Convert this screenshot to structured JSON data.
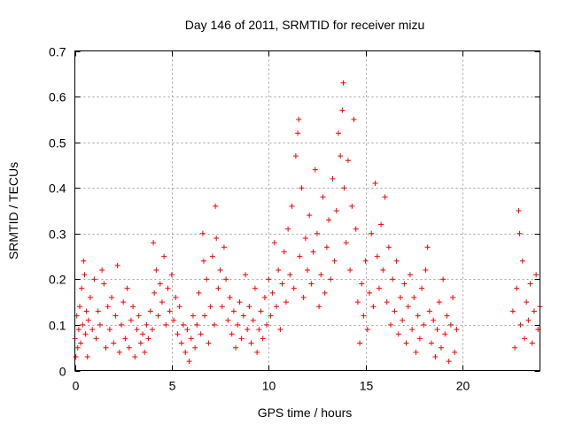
{
  "chart_data": {
    "type": "scatter",
    "title": "Day 146 of 2011, SRMTID for receiver mizu",
    "xlabel": "GPS time / hours",
    "ylabel": "SRMTID / TECUs",
    "xlim": [
      0,
      24
    ],
    "ylim": [
      0,
      0.7
    ],
    "xticks": [
      0,
      5,
      10,
      15,
      20
    ],
    "yticks": [
      0,
      0.1,
      0.2,
      0.3,
      0.4,
      0.5,
      0.6,
      0.7
    ],
    "xtick_labels": [
      "0",
      "5",
      "10",
      "15",
      "20"
    ],
    "ytick_labels": [
      "0",
      "0.1",
      "0.2",
      "0.3",
      "0.4",
      "0.5",
      "0.6",
      "0.7"
    ],
    "grid": true,
    "marker": "+",
    "series": [
      {
        "name": "SRMTID",
        "color": "#ff0000",
        "points": [
          [
            0.0,
            0.07
          ],
          [
            0.05,
            0.03
          ],
          [
            0.1,
            0.12
          ],
          [
            0.15,
            0.05
          ],
          [
            0.2,
            0.09
          ],
          [
            0.25,
            0.14
          ],
          [
            0.3,
            0.06
          ],
          [
            0.35,
            0.18
          ],
          [
            0.4,
            0.1
          ],
          [
            0.45,
            0.24
          ],
          [
            0.5,
            0.21
          ],
          [
            0.55,
            0.08
          ],
          [
            0.6,
            0.13
          ],
          [
            0.65,
            0.03
          ],
          [
            0.7,
            0.11
          ],
          [
            0.8,
            0.16
          ],
          [
            0.9,
            0.09
          ],
          [
            1.0,
            0.2
          ],
          [
            1.1,
            0.07
          ],
          [
            1.2,
            0.13
          ],
          [
            1.3,
            0.1
          ],
          [
            1.4,
            0.22
          ],
          [
            1.5,
            0.19
          ],
          [
            1.6,
            0.05
          ],
          [
            1.7,
            0.14
          ],
          [
            1.8,
            0.09
          ],
          [
            1.9,
            0.16
          ],
          [
            2.0,
            0.06
          ],
          [
            2.1,
            0.12
          ],
          [
            2.2,
            0.23
          ],
          [
            2.3,
            0.04
          ],
          [
            2.4,
            0.1
          ],
          [
            2.5,
            0.15
          ],
          [
            2.6,
            0.07
          ],
          [
            2.7,
            0.18
          ],
          [
            2.8,
            0.05
          ],
          [
            2.9,
            0.11
          ],
          [
            3.0,
            0.14
          ],
          [
            3.1,
            0.03
          ],
          [
            3.2,
            0.09
          ],
          [
            3.3,
            0.12
          ],
          [
            3.4,
            0.06
          ],
          [
            3.5,
            0.08
          ],
          [
            3.6,
            0.04
          ],
          [
            3.7,
            0.1
          ],
          [
            3.8,
            0.07
          ],
          [
            3.9,
            0.13
          ],
          [
            4.0,
            0.09
          ],
          [
            4.05,
            0.28
          ],
          [
            4.1,
            0.17
          ],
          [
            4.2,
            0.22
          ],
          [
            4.3,
            0.12
          ],
          [
            4.4,
            0.19
          ],
          [
            4.5,
            0.15
          ],
          [
            4.6,
            0.25
          ],
          [
            4.7,
            0.1
          ],
          [
            4.8,
            0.18
          ],
          [
            4.9,
            0.13
          ],
          [
            5.0,
            0.21
          ],
          [
            5.1,
            0.11
          ],
          [
            5.2,
            0.16
          ],
          [
            5.3,
            0.08
          ],
          [
            5.4,
            0.14
          ],
          [
            5.5,
            0.06
          ],
          [
            5.6,
            0.1
          ],
          [
            5.7,
            0.04
          ],
          [
            5.8,
            0.09
          ],
          [
            5.9,
            0.02
          ],
          [
            6.0,
            0.07
          ],
          [
            6.1,
            0.12
          ],
          [
            6.2,
            0.05
          ],
          [
            6.3,
            0.1
          ],
          [
            6.4,
            0.17
          ],
          [
            6.5,
            0.08
          ],
          [
            6.6,
            0.3
          ],
          [
            6.65,
            0.24
          ],
          [
            6.7,
            0.12
          ],
          [
            6.8,
            0.2
          ],
          [
            6.9,
            0.06
          ],
          [
            7.0,
            0.14
          ],
          [
            7.1,
            0.25
          ],
          [
            7.2,
            0.1
          ],
          [
            7.25,
            0.36
          ],
          [
            7.3,
            0.29
          ],
          [
            7.4,
            0.18
          ],
          [
            7.5,
            0.22
          ],
          [
            7.6,
            0.14
          ],
          [
            7.7,
            0.27
          ],
          [
            7.8,
            0.2
          ],
          [
            7.9,
            0.11
          ],
          [
            8.0,
            0.16
          ],
          [
            8.1,
            0.08
          ],
          [
            8.2,
            0.13
          ],
          [
            8.3,
            0.05
          ],
          [
            8.4,
            0.1
          ],
          [
            8.5,
            0.15
          ],
          [
            8.6,
            0.07
          ],
          [
            8.7,
            0.12
          ],
          [
            8.8,
            0.21
          ],
          [
            8.9,
            0.09
          ],
          [
            9.0,
            0.14
          ],
          [
            9.1,
            0.06
          ],
          [
            9.2,
            0.11
          ],
          [
            9.3,
            0.18
          ],
          [
            9.4,
            0.04
          ],
          [
            9.5,
            0.09
          ],
          [
            9.6,
            0.13
          ],
          [
            9.7,
            0.07
          ],
          [
            9.8,
            0.16
          ],
          [
            9.9,
            0.1
          ],
          [
            10.0,
            0.2
          ],
          [
            10.1,
            0.12
          ],
          [
            10.2,
            0.17
          ],
          [
            10.3,
            0.28
          ],
          [
            10.4,
            0.14
          ],
          [
            10.5,
            0.22
          ],
          [
            10.6,
            0.09
          ],
          [
            10.7,
            0.19
          ],
          [
            10.8,
            0.26
          ],
          [
            10.9,
            0.15
          ],
          [
            11.0,
            0.31
          ],
          [
            11.1,
            0.21
          ],
          [
            11.2,
            0.36
          ],
          [
            11.3,
            0.18
          ],
          [
            11.4,
            0.47
          ],
          [
            11.5,
            0.52
          ],
          [
            11.55,
            0.55
          ],
          [
            11.6,
            0.25
          ],
          [
            11.7,
            0.4
          ],
          [
            11.8,
            0.16
          ],
          [
            11.9,
            0.29
          ],
          [
            12.0,
            0.22
          ],
          [
            12.1,
            0.34
          ],
          [
            12.2,
            0.19
          ],
          [
            12.3,
            0.26
          ],
          [
            12.4,
            0.44
          ],
          [
            12.5,
            0.3
          ],
          [
            12.6,
            0.14
          ],
          [
            12.7,
            0.21
          ],
          [
            12.8,
            0.38
          ],
          [
            12.9,
            0.17
          ],
          [
            13.0,
            0.27
          ],
          [
            13.1,
            0.33
          ],
          [
            13.2,
            0.2
          ],
          [
            13.3,
            0.42
          ],
          [
            13.4,
            0.24
          ],
          [
            13.5,
            0.35
          ],
          [
            13.6,
            0.52
          ],
          [
            13.7,
            0.47
          ],
          [
            13.8,
            0.57
          ],
          [
            13.85,
            0.63
          ],
          [
            13.9,
            0.4
          ],
          [
            14.0,
            0.28
          ],
          [
            14.1,
            0.46
          ],
          [
            14.2,
            0.22
          ],
          [
            14.3,
            0.36
          ],
          [
            14.4,
            0.55
          ],
          [
            14.5,
            0.31
          ],
          [
            14.6,
            0.15
          ],
          [
            14.7,
            0.06
          ],
          [
            14.8,
            0.19
          ],
          [
            14.9,
            0.12
          ],
          [
            15.0,
            0.24
          ],
          [
            15.1,
            0.09
          ],
          [
            15.2,
            0.17
          ],
          [
            15.3,
            0.3
          ],
          [
            15.4,
            0.14
          ],
          [
            15.5,
            0.41
          ],
          [
            15.6,
            0.25
          ],
          [
            15.7,
            0.18
          ],
          [
            15.8,
            0.32
          ],
          [
            15.9,
            0.22
          ],
          [
            16.0,
            0.38
          ],
          [
            16.1,
            0.15
          ],
          [
            16.2,
            0.27
          ],
          [
            16.3,
            0.1
          ],
          [
            16.4,
            0.2
          ],
          [
            16.5,
            0.13
          ],
          [
            16.6,
            0.24
          ],
          [
            16.7,
            0.08
          ],
          [
            16.8,
            0.16
          ],
          [
            16.9,
            0.11
          ],
          [
            17.0,
            0.19
          ],
          [
            17.1,
            0.06
          ],
          [
            17.2,
            0.14
          ],
          [
            17.3,
            0.21
          ],
          [
            17.4,
            0.09
          ],
          [
            17.5,
            0.16
          ],
          [
            17.6,
            0.04
          ],
          [
            17.7,
            0.12
          ],
          [
            17.8,
            0.07
          ],
          [
            17.9,
            0.18
          ],
          [
            18.0,
            0.1
          ],
          [
            18.1,
            0.22
          ],
          [
            18.2,
            0.27
          ],
          [
            18.3,
            0.13
          ],
          [
            18.4,
            0.06
          ],
          [
            18.5,
            0.11
          ],
          [
            18.6,
            0.03
          ],
          [
            18.7,
            0.09
          ],
          [
            18.8,
            0.15
          ],
          [
            18.9,
            0.05
          ],
          [
            19.0,
            0.2
          ],
          [
            19.1,
            0.08
          ],
          [
            19.2,
            0.12
          ],
          [
            19.3,
            0.02
          ],
          [
            19.4,
            0.1
          ],
          [
            19.5,
            0.16
          ],
          [
            19.6,
            0.04
          ],
          [
            19.7,
            0.09
          ],
          [
            22.6,
            0.13
          ],
          [
            22.7,
            0.05
          ],
          [
            22.8,
            0.18
          ],
          [
            22.9,
            0.35
          ],
          [
            22.95,
            0.3
          ],
          [
            23.0,
            0.1
          ],
          [
            23.1,
            0.24
          ],
          [
            23.2,
            0.07
          ],
          [
            23.3,
            0.15
          ],
          [
            23.4,
            0.11
          ],
          [
            23.5,
            0.19
          ],
          [
            23.6,
            0.06
          ],
          [
            23.7,
            0.13
          ],
          [
            23.8,
            0.21
          ],
          [
            23.9,
            0.09
          ],
          [
            24.0,
            0.14
          ]
        ]
      }
    ]
  }
}
